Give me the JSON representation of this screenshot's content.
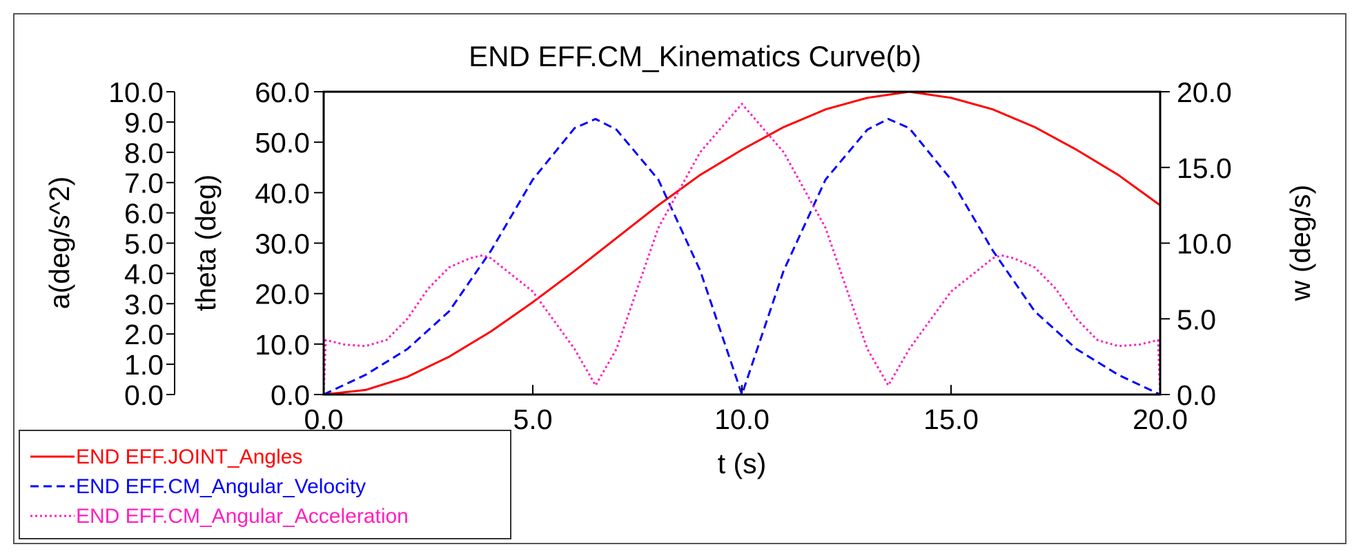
{
  "chart_data": {
    "type": "line",
    "title": "END EFF.CM_Kinematics Curve(b)",
    "xlabel": "t (s)",
    "xlim": [
      0,
      20
    ],
    "xticks": [
      "0.0",
      "5.0",
      "10.0",
      "15.0",
      "20.0"
    ],
    "y_axes": {
      "accel": {
        "label": "a(deg/s^2)",
        "range": [
          0,
          10
        ],
        "ticks": [
          "0.0",
          "1.0",
          "2.0",
          "3.0",
          "4.0",
          "5.0",
          "6.0",
          "7.0",
          "8.0",
          "9.0",
          "10.0"
        ]
      },
      "theta": {
        "label": "theta (deg)",
        "range": [
          0,
          60
        ],
        "ticks": [
          "0.0",
          "10.0",
          "20.0",
          "30.0",
          "40.0",
          "50.0",
          "60.0"
        ]
      },
      "omega": {
        "label": "w (deg/s)",
        "range": [
          0,
          20
        ],
        "ticks": [
          "0.0",
          "5.0",
          "10.0",
          "15.0",
          "20.0"
        ]
      }
    },
    "series": [
      {
        "name": "END EFF.JOINT_Angles",
        "axis": "theta",
        "color": "#ff0000",
        "dash": "solid",
        "x": [
          0,
          1,
          2,
          3,
          4,
          5,
          6,
          7,
          8,
          9,
          10,
          11,
          12,
          13,
          14,
          15,
          16,
          17,
          18,
          19,
          20
        ],
        "values": [
          0.0,
          0.9,
          3.5,
          7.5,
          12.5,
          18.3,
          24.5,
          31.0,
          37.5,
          43.5,
          48.5,
          53.0,
          56.5,
          58.8,
          60.0,
          58.8,
          56.5,
          53.0,
          48.5,
          43.5,
          37.5
        ]
      },
      {
        "name": "END EFF.CM_Angular_Velocity",
        "axis": "omega",
        "color": "#0000ff",
        "dash": "dashed",
        "x": [
          0,
          1,
          2,
          3,
          4,
          5,
          6,
          6.5,
          7,
          8,
          9,
          10,
          11,
          12,
          13,
          13.5,
          14,
          15,
          16,
          17,
          18,
          19,
          20
        ],
        "values": [
          0.0,
          1.3,
          3.0,
          5.5,
          9.5,
          14.2,
          17.6,
          18.2,
          17.5,
          14.2,
          8.2,
          0.0,
          8.2,
          14.2,
          17.5,
          18.2,
          17.6,
          14.2,
          9.5,
          5.5,
          3.0,
          1.3,
          0.0
        ]
      },
      {
        "name": "END EFF.CM_Angular_Acceleration",
        "axis": "accel",
        "color": "#ff1fbf",
        "dash": "dotted",
        "x": [
          0,
          0.05,
          0.5,
          1,
          1.5,
          2,
          2.5,
          3,
          3.5,
          3.8,
          4,
          5,
          6,
          6.5,
          7,
          8,
          9,
          10,
          11,
          12,
          13,
          13.5,
          14,
          15,
          16,
          16.2,
          16.5,
          17,
          17.5,
          18,
          18.5,
          19,
          19.5,
          19.95,
          20
        ],
        "values": [
          0.0,
          1.8,
          1.65,
          1.6,
          1.8,
          2.5,
          3.5,
          4.2,
          4.5,
          4.6,
          4.5,
          3.4,
          1.5,
          0.3,
          1.5,
          5.5,
          8.0,
          9.6,
          8.0,
          5.5,
          1.5,
          0.3,
          1.5,
          3.4,
          4.5,
          4.6,
          4.5,
          4.2,
          3.5,
          2.5,
          1.8,
          1.6,
          1.65,
          1.8,
          0.0
        ]
      }
    ],
    "legend": {
      "position": "bottom-left",
      "entries": [
        "END EFF.JOINT_Angles",
        "END EFF.CM_Angular_Velocity",
        "END EFF.CM_Angular_Acceleration"
      ]
    }
  }
}
